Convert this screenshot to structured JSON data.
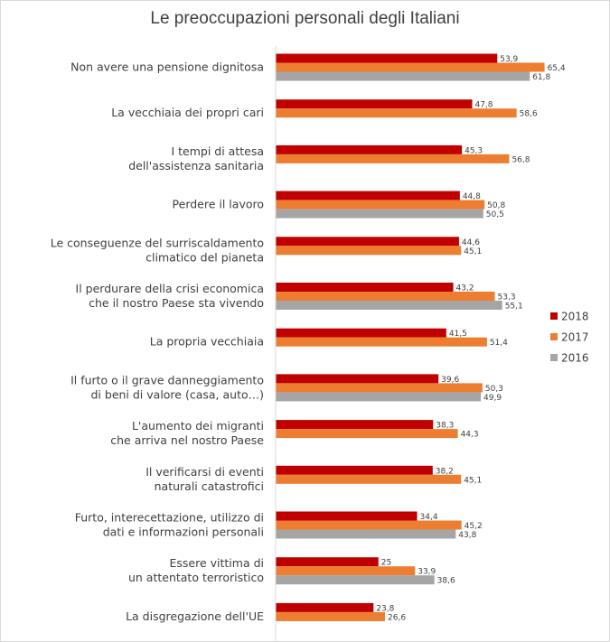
{
  "chart_data": {
    "type": "bar",
    "orientation": "horizontal",
    "title": "Le preoccupazioni personali degli Italiani",
    "legend_position": "right",
    "grid": false,
    "xlim": [
      0,
      70
    ],
    "categories": [
      [
        "Non avere una pensione dignitosa"
      ],
      [
        "La vecchiaia dei propri cari"
      ],
      [
        "I tempi di attesa",
        "dell'assistenza sanitaria"
      ],
      [
        "Perdere il lavoro"
      ],
      [
        "Le conseguenze del surriscaldamento",
        "climatico del pianeta"
      ],
      [
        "Il perdurare della crisi economica",
        "che il nostro Paese sta vivendo"
      ],
      [
        "La propria vecchiaia"
      ],
      [
        "Il furto o il grave danneggiamento",
        "di beni di valore (casa, auto…)"
      ],
      [
        "L'aumento dei migranti",
        "che arriva nel nostro Paese"
      ],
      [
        "Il verificarsi di eventi",
        "naturali catastrofici"
      ],
      [
        "Furto, interecettazione, utilizzo di",
        "dati e informazioni personali"
      ],
      [
        "Essere vittima di",
        "un attentato terroristico"
      ],
      [
        "La disgregazione dell'UE"
      ]
    ],
    "series": [
      {
        "name": "2018",
        "color": "#c00000",
        "values": [
          53.9,
          47.8,
          45.3,
          44.8,
          44.6,
          43.2,
          41.5,
          39.6,
          38.3,
          38.2,
          34.4,
          25,
          23.8
        ],
        "labels": [
          "53,9",
          "47,8",
          "45,3",
          "44,8",
          "44,6",
          "43,2",
          "41,5",
          "39,6",
          "38,3",
          "38,2",
          "34,4",
          "25",
          "23,8"
        ]
      },
      {
        "name": "2017",
        "color": "#ed7d31",
        "values": [
          65.4,
          58.6,
          56.8,
          50.8,
          45.1,
          53.3,
          51.4,
          50.3,
          44.3,
          45.1,
          45.2,
          33.9,
          26.6
        ],
        "labels": [
          "65,4",
          "58,6",
          "56,8",
          "50,8",
          "45,1",
          "53,3",
          "51,4",
          "50,3",
          "44,3",
          "45,1",
          "45,2",
          "33,9",
          "26,6"
        ]
      },
      {
        "name": "2016",
        "color": "#a5a5a5",
        "values": [
          61.8,
          null,
          null,
          50.5,
          null,
          55.1,
          null,
          49.9,
          null,
          null,
          43.8,
          38.6,
          null
        ],
        "labels": [
          "61,8",
          "",
          "",
          "50,5",
          "",
          "55,1",
          "",
          "49,9",
          "",
          "",
          "43,8",
          "38,6",
          ""
        ]
      }
    ]
  }
}
